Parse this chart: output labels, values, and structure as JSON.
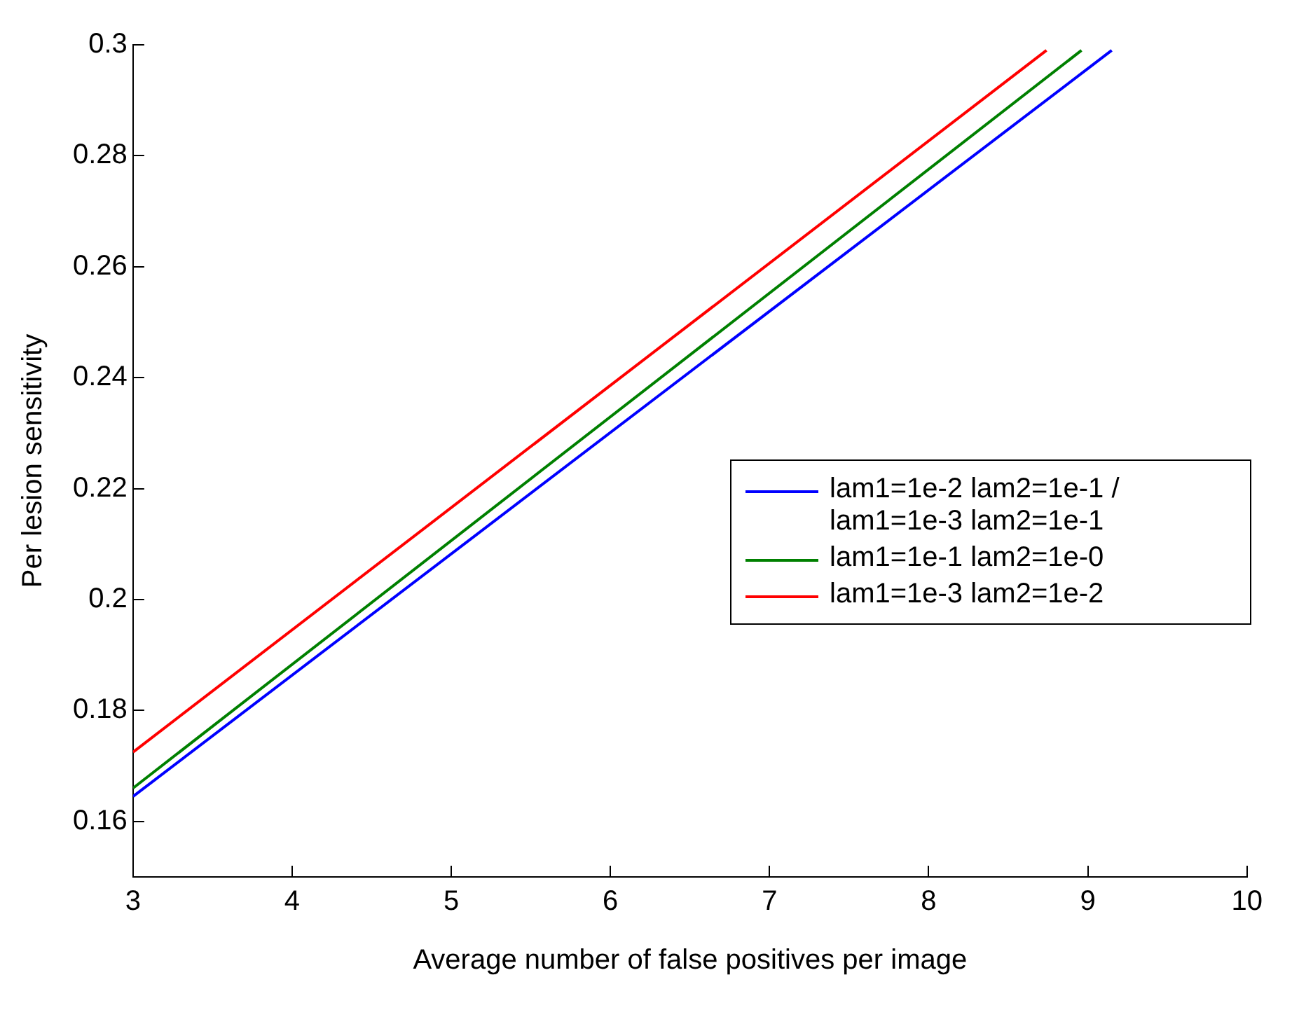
{
  "chart_data": {
    "type": "line",
    "xlabel": "Average number of false positives per image",
    "ylabel": "Per lesion sensitivity",
    "series": [
      {
        "name": "lam1=1e-2 lam2=1e-1 / lam1=1e-3 lam2=1e-1",
        "color": "#0000ff",
        "x": [
          3,
          9.15
        ],
        "values": [
          0.1645,
          0.299
        ]
      },
      {
        "name": "lam1=1e-1 lam2=1e-0",
        "color": "#008000",
        "x": [
          3,
          8.96
        ],
        "values": [
          0.166,
          0.299
        ]
      },
      {
        "name": "lam1=1e-3 lam2=1e-2",
        "color": "#ff0000",
        "x": [
          3,
          8.74
        ],
        "values": [
          0.1725,
          0.299
        ]
      }
    ],
    "xlim": [
      3,
      10
    ],
    "xticks": [
      3,
      4,
      5,
      6,
      7,
      8,
      9,
      10
    ],
    "ylim": [
      0.15,
      0.3
    ],
    "yticks": [
      0.16,
      0.18,
      0.2,
      0.22,
      0.24,
      0.26,
      0.28,
      0.3
    ],
    "legend": "right",
    "grid": false,
    "marker": "none",
    "line_style": "solid"
  }
}
